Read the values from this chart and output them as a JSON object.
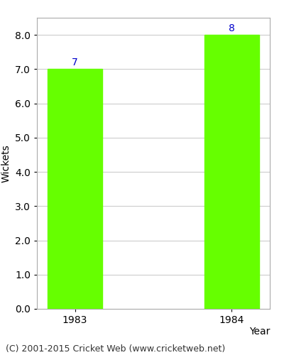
{
  "categories": [
    "1983",
    "1984"
  ],
  "values": [
    7,
    8
  ],
  "bar_color": "#66ff00",
  "bar_width": 0.35,
  "label_color": "#0000cc",
  "label_fontsize": 10,
  "xlabel": "Year",
  "ylabel": "Wickets",
  "ylim": [
    0.0,
    8.5
  ],
  "yticks": [
    0.0,
    1.0,
    2.0,
    3.0,
    4.0,
    5.0,
    6.0,
    7.0,
    8.0
  ],
  "grid_color": "#cccccc",
  "background_color": "#ffffff",
  "footer_text": "(C) 2001-2015 Cricket Web (www.cricketweb.net)",
  "footer_fontsize": 9,
  "xlabel_fontsize": 10,
  "ylabel_fontsize": 10,
  "tick_fontsize": 10,
  "spine_color": "#aaaaaa"
}
